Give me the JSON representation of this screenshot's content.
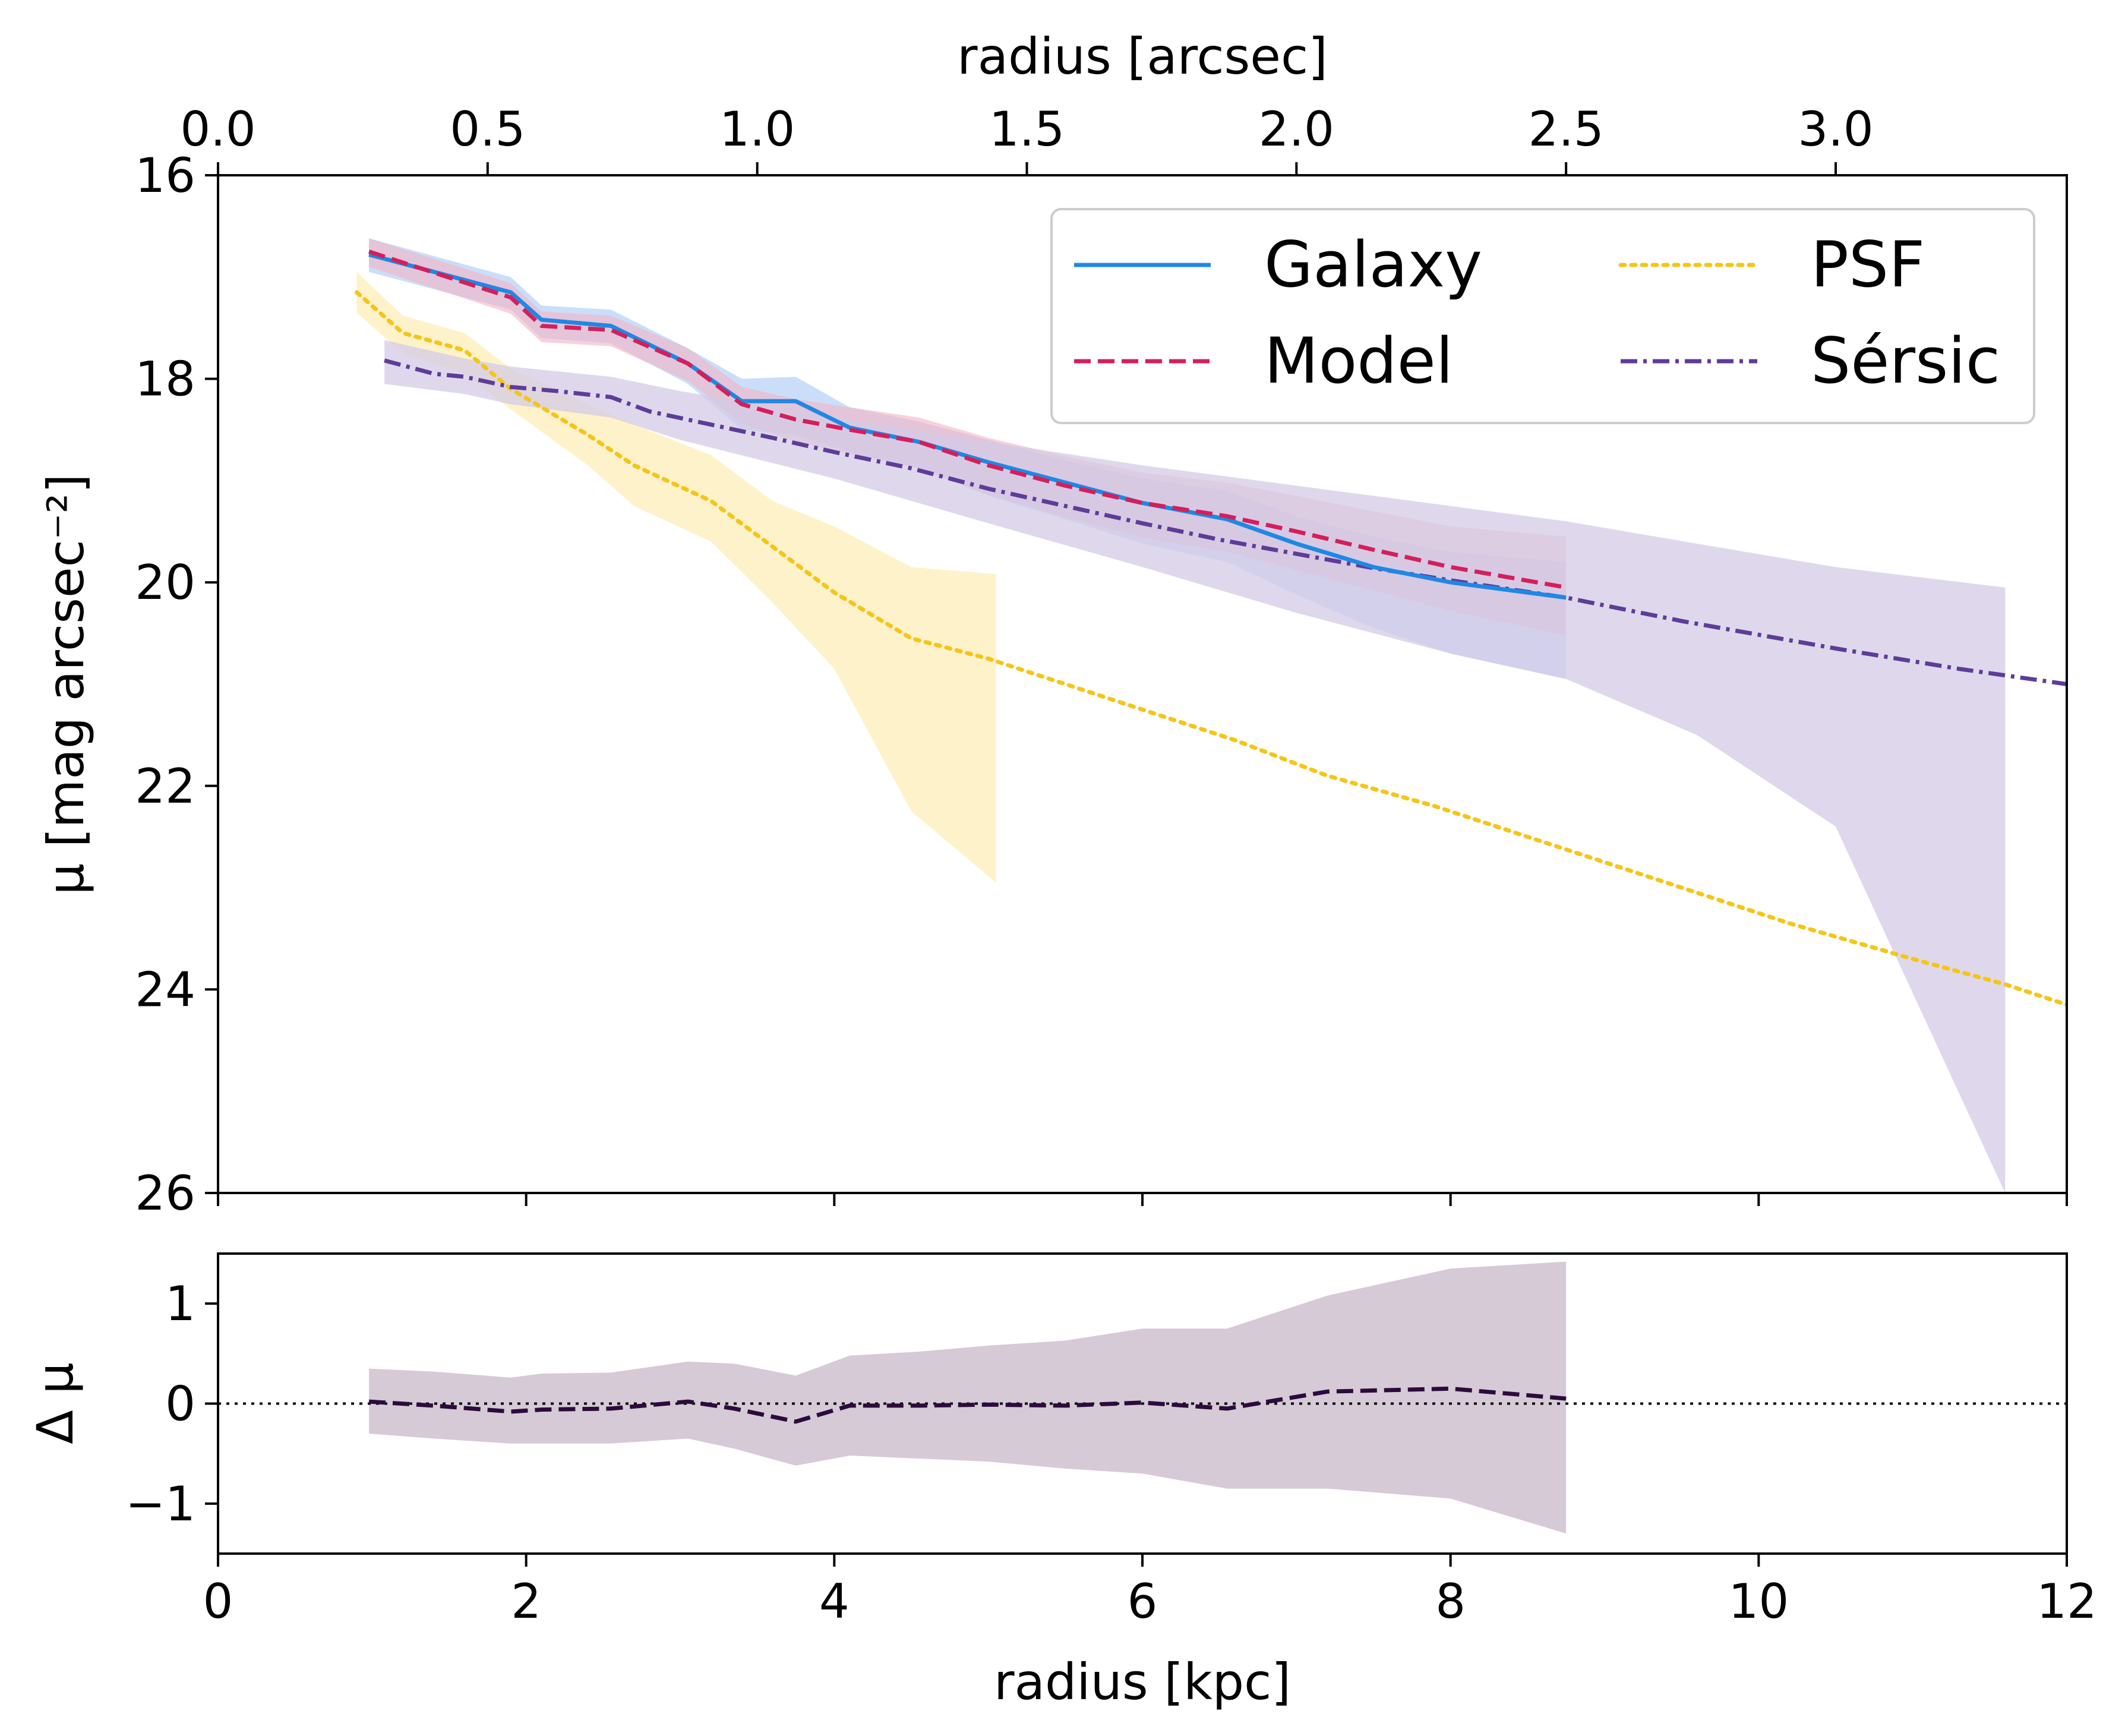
{
  "chart_data": [
    {
      "panel": "profile",
      "type": "line",
      "xlabel": "radius [kpc]",
      "ylabel": "μ [mag arcsec⁻²]",
      "top_xlabel": "radius [arcsec]",
      "xlim": [
        0,
        12
      ],
      "ylim": [
        26,
        16
      ],
      "y_inverted": true,
      "grid": false,
      "legend": "top-right",
      "legend_columns": 2,
      "xticks": [
        "0",
        "2",
        "4",
        "6",
        "8",
        "10",
        "12"
      ],
      "yticks": [
        "16",
        "18",
        "20",
        "22",
        "24",
        "26"
      ],
      "top_xticks": [
        "0.0",
        "0.5",
        "1.0",
        "1.5",
        "2.0",
        "2.5",
        "3.0"
      ],
      "top_xtick_values_arcsec": [
        0.0,
        0.5,
        1.0,
        1.5,
        2.0,
        2.5,
        3.0
      ],
      "top_xtick_scale_kpc_per_arcsec": 3.5,
      "series": [
        {
          "name": "Galaxy",
          "style": "solid",
          "color": "#1e88e5",
          "band_color": "#a6c8f5",
          "x": [
            0.98,
            1.9,
            2.1,
            2.55,
            3.05,
            3.4,
            3.75,
            4.1,
            4.55,
            5.0,
            5.5,
            6.0,
            6.55,
            7.0,
            7.5,
            8.0,
            8.75
          ],
          "y": [
            16.78,
            17.15,
            17.42,
            17.48,
            17.85,
            18.22,
            18.22,
            18.48,
            18.62,
            18.82,
            19.02,
            19.22,
            19.38,
            19.62,
            19.85,
            20.0,
            20.15
          ],
          "band_low": [
            16.62,
            17.0,
            17.28,
            17.32,
            17.7,
            18.0,
            17.98,
            18.28,
            18.42,
            18.6,
            18.8,
            18.98,
            19.1,
            19.35,
            19.55,
            19.7,
            19.8
          ],
          "band_high": [
            16.95,
            17.32,
            17.6,
            17.65,
            18.05,
            18.5,
            18.55,
            18.72,
            18.88,
            19.15,
            19.38,
            19.62,
            19.8,
            20.12,
            20.45,
            20.7,
            20.95
          ]
        },
        {
          "name": "Model",
          "style": "dashed",
          "color": "#d41f5b",
          "band_color": "#f3b3c3",
          "x": [
            0.98,
            1.9,
            2.1,
            2.55,
            3.05,
            3.4,
            3.75,
            4.1,
            4.55,
            5.0,
            5.5,
            6.0,
            6.55,
            7.0,
            7.5,
            8.0,
            8.75
          ],
          "y": [
            16.75,
            17.2,
            17.48,
            17.52,
            17.85,
            18.25,
            18.4,
            18.5,
            18.62,
            18.85,
            19.05,
            19.22,
            19.35,
            19.5,
            19.68,
            19.85,
            20.05
          ],
          "band_low": [
            16.62,
            17.06,
            17.34,
            17.38,
            17.7,
            18.08,
            18.2,
            18.28,
            18.38,
            18.58,
            18.76,
            18.92,
            19.02,
            19.15,
            19.3,
            19.45,
            19.55
          ],
          "band_high": [
            16.9,
            17.36,
            17.64,
            17.68,
            18.02,
            18.44,
            18.62,
            18.74,
            18.88,
            19.14,
            19.36,
            19.56,
            19.7,
            19.88,
            20.08,
            20.28,
            20.52
          ]
        },
        {
          "name": "PSF",
          "style": "dotted",
          "color": "#f5c518",
          "band_color": "#fde9a6",
          "x": [
            0.9,
            1.2,
            1.6,
            1.9,
            2.4,
            2.7,
            3.2,
            3.6,
            4.0,
            4.5,
            5.0,
            5.6,
            6.1,
            6.6,
            7.2,
            7.9,
            8.6,
            9.4,
            10.2,
            11.0,
            11.6,
            12.0
          ],
          "y": [
            17.15,
            17.55,
            17.72,
            18.1,
            18.55,
            18.85,
            19.2,
            19.65,
            20.1,
            20.55,
            20.75,
            21.05,
            21.3,
            21.55,
            21.9,
            22.2,
            22.55,
            22.95,
            23.35,
            23.7,
            23.95,
            24.15
          ],
          "band_x": [
            0.9,
            1.2,
            1.6,
            1.9,
            2.4,
            2.7,
            3.2,
            3.6,
            4.0,
            4.5,
            5.05
          ],
          "band_low": [
            16.95,
            17.38,
            17.55,
            17.9,
            18.25,
            18.45,
            18.75,
            19.2,
            19.45,
            19.85,
            19.92
          ],
          "band_high": [
            17.35,
            17.75,
            17.95,
            18.3,
            18.85,
            19.25,
            19.6,
            20.2,
            20.85,
            22.25,
            22.95
          ]
        },
        {
          "name": "Sérsic",
          "style": "dashdot",
          "color": "#5e3c99",
          "band_color": "#d4cbe6",
          "x": [
            1.08,
            1.4,
            1.6,
            1.9,
            2.2,
            2.55,
            2.8,
            3.2,
            3.6,
            4.0,
            4.5,
            5.0,
            5.5,
            6.0,
            6.5,
            7.0,
            7.5,
            8.0,
            8.75,
            9.5,
            10.5,
            11.3,
            12.0
          ],
          "y": [
            17.82,
            17.95,
            17.98,
            18.08,
            18.12,
            18.18,
            18.32,
            18.45,
            18.58,
            18.72,
            18.88,
            19.08,
            19.25,
            19.42,
            19.58,
            19.72,
            19.86,
            19.98,
            20.15,
            20.38,
            20.65,
            20.85,
            21.0
          ],
          "band_x": [
            1.08,
            1.6,
            1.9,
            2.55,
            3.0,
            4.0,
            5.0,
            6.0,
            7.0,
            8.0,
            8.75,
            9.6,
            10.5,
            11.6
          ],
          "band_low": [
            17.62,
            17.8,
            17.88,
            17.98,
            18.12,
            18.38,
            18.62,
            18.85,
            19.05,
            19.25,
            19.4,
            19.62,
            19.85,
            20.05
          ],
          "band_high": [
            18.05,
            18.15,
            18.25,
            18.38,
            18.6,
            18.98,
            19.42,
            19.85,
            20.3,
            20.7,
            20.95,
            21.5,
            22.4,
            26.0
          ]
        }
      ]
    },
    {
      "panel": "residual",
      "type": "line",
      "xlabel": "radius [kpc]",
      "ylabel": "Δ μ",
      "xlim": [
        0,
        12
      ],
      "ylim": [
        -1.5,
        1.5
      ],
      "grid": false,
      "xticks": [
        "0",
        "2",
        "4",
        "6",
        "8",
        "10",
        "12"
      ],
      "yticks": [
        "1",
        "0",
        "−1"
      ],
      "ytick_values": [
        1,
        0,
        -1
      ],
      "zero_line": {
        "y": 0,
        "style": "dotted",
        "color": "#000000"
      },
      "series": [
        {
          "style": "dashed",
          "color": "#2d0a3d",
          "band_color": "#d6cad6",
          "x": [
            0.98,
            1.4,
            1.9,
            2.1,
            2.55,
            3.05,
            3.35,
            3.75,
            4.1,
            4.55,
            5.0,
            5.5,
            6.0,
            6.55,
            7.2,
            8.0,
            8.75
          ],
          "y": [
            0.02,
            -0.02,
            -0.08,
            -0.06,
            -0.05,
            0.02,
            -0.05,
            -0.18,
            -0.02,
            -0.02,
            -0.01,
            -0.02,
            0.01,
            -0.05,
            0.12,
            0.15,
            0.05
          ],
          "band_low": [
            -0.3,
            -0.35,
            -0.4,
            -0.4,
            -0.4,
            -0.35,
            -0.45,
            -0.62,
            -0.52,
            -0.55,
            -0.58,
            -0.65,
            -0.7,
            -0.85,
            -0.85,
            -0.95,
            -1.3
          ],
          "band_high": [
            0.35,
            0.32,
            0.26,
            0.3,
            0.31,
            0.42,
            0.4,
            0.28,
            0.48,
            0.52,
            0.58,
            0.63,
            0.75,
            0.75,
            1.08,
            1.35,
            1.42
          ]
        }
      ]
    }
  ]
}
